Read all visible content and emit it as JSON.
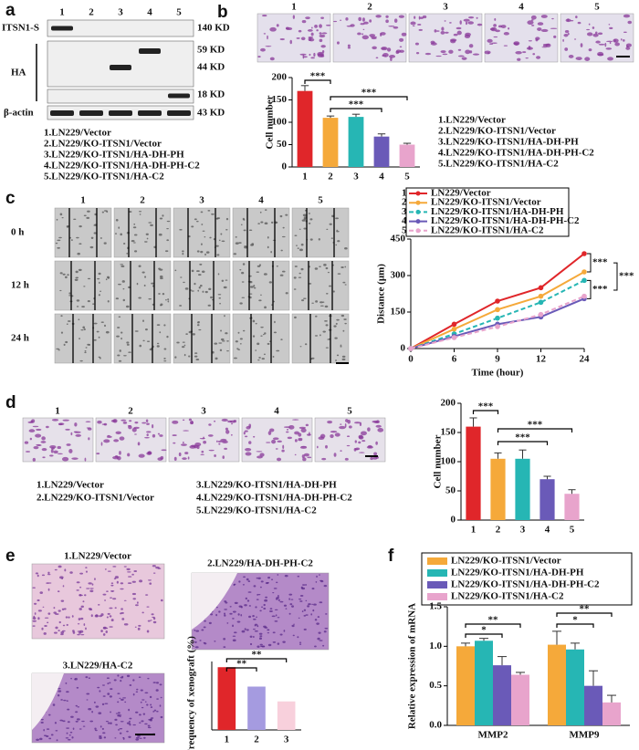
{
  "panels": {
    "a": {
      "label": "a",
      "lanes": [
        "1",
        "2",
        "3",
        "4",
        "5"
      ],
      "rows": [
        "ITSN1-S",
        "HA",
        "β-actin"
      ],
      "sizes": [
        "140 KD",
        "59 KD",
        "44 KD",
        "18 KD",
        "43 KD"
      ],
      "legend": [
        "1.LN229/Vector",
        "2.LN229/KO-ITSN1/Vector",
        "3.LN229/KO-ITSN1/HA-DH-PH",
        "4.LN229/KO-ITSN1/HA-DH-PH-C2",
        "5.LN229/KO-ITSN1/HA-C2"
      ]
    },
    "b": {
      "label": "b",
      "images": [
        "1",
        "2",
        "3",
        "4",
        "5"
      ],
      "legend": [
        "1.LN229/Vector",
        "2.LN229/KO-ITSN1/Vector",
        "3.LN229/KO-ITSN1/HA-DH-PH",
        "4.LN229/KO-ITSN1/HA-DH-PH-C2",
        "5.LN229/KO-ITSN1/HA-C2"
      ]
    },
    "c": {
      "label": "c",
      "columns": [
        "1",
        "2",
        "3",
        "4",
        "5"
      ],
      "rows": [
        "0 h",
        "12 h",
        "24 h"
      ]
    },
    "d": {
      "label": "d",
      "images": [
        "1",
        "2",
        "3",
        "4",
        "5"
      ],
      "legend": [
        "1.LN229/Vector",
        "2.LN229/KO-ITSN1/Vector",
        "3.LN229/KO-ITSN1/HA-DH-PH",
        "4.LN229/KO-ITSN1/HA-DH-PH-C2",
        "5.LN229/KO-ITSN1/HA-C2"
      ]
    },
    "e": {
      "label": "e",
      "images": [
        "1.LN229/Vector",
        "2.LN229/HA-DH-PH-C2",
        "3.LN229/HA-C2"
      ]
    },
    "f": {
      "label": "f"
    }
  },
  "chart_data": [
    {
      "type": "bar",
      "y_label": "Cell number",
      "categories": [
        "1",
        "2",
        "3",
        "4",
        "5"
      ],
      "values": [
        170,
        110,
        112,
        68,
        50
      ],
      "errors": [
        12,
        4,
        6,
        6,
        3
      ],
      "colors": [
        "#e0262a",
        "#f5a93a",
        "#26b6b4",
        "#6a5ab8",
        "#e8a4cc"
      ],
      "ylim": [
        0,
        200
      ],
      "yticks": [
        0,
        50,
        100,
        150,
        200
      ],
      "annotations": [
        "***",
        "***",
        "***"
      ]
    },
    {
      "type": "line",
      "x_label": "Time (hour)",
      "y_label": "Distance (μm)",
      "categories": [
        "0",
        "6",
        "9",
        "12",
        "24"
      ],
      "ylim": [
        0,
        450
      ],
      "yticks": [
        0,
        150,
        300,
        450
      ],
      "legend_numbers": [
        "1",
        "2",
        "3",
        "4",
        "5"
      ],
      "series": [
        {
          "name": "LN229/Vector",
          "color": "#e0262a",
          "style": "solid",
          "values": [
            0,
            100,
            195,
            250,
            390
          ]
        },
        {
          "name": "LN229/KO-ITSN1/Vector",
          "color": "#f5a93a",
          "style": "solid",
          "values": [
            0,
            80,
            160,
            215,
            315
          ]
        },
        {
          "name": "LN229/KO-ITSN1/HA-DH-PH",
          "color": "#26b6b4",
          "style": "dashed",
          "values": [
            0,
            60,
            125,
            190,
            280
          ]
        },
        {
          "name": "LN229/KO-ITSN1/HA-DH-PH-C2",
          "color": "#6a5ab8",
          "style": "solid",
          "values": [
            0,
            50,
            100,
            130,
            205
          ]
        },
        {
          "name": "LN229/KO-ITSN1/HA-C2",
          "color": "#e8a4cc",
          "style": "dashed",
          "values": [
            0,
            45,
            90,
            140,
            215
          ]
        }
      ],
      "annotations": [
        "***",
        "***",
        "***"
      ]
    },
    {
      "type": "bar",
      "y_label": "Cell number",
      "categories": [
        "1",
        "2",
        "3",
        "4",
        "5"
      ],
      "values": [
        160,
        105,
        105,
        70,
        45
      ],
      "errors": [
        15,
        10,
        15,
        5,
        7
      ],
      "colors": [
        "#e0262a",
        "#f5a93a",
        "#26b6b4",
        "#6a5ab8",
        "#e8a4cc"
      ],
      "ylim": [
        0,
        200
      ],
      "yticks": [
        0,
        50,
        100,
        150,
        200
      ],
      "annotations": [
        "***",
        "***",
        "***"
      ]
    },
    {
      "type": "bar",
      "y_label": "Frequency of xenograft (%)",
      "categories": [
        "1",
        "2",
        "3"
      ],
      "values": [
        55,
        38,
        25
      ],
      "colors": [
        "#e0262a",
        "#a59be0",
        "#f8d0dc"
      ],
      "ylim": [
        0,
        60
      ],
      "annotations": [
        "**",
        "**"
      ]
    },
    {
      "type": "bar",
      "y_label": "Relative expression of mRNA",
      "categories": [
        "MMP2",
        "MMP9"
      ],
      "ylim": [
        0,
        1.5
      ],
      "yticks": [
        {
          "value": 0,
          "label": "0.0"
        },
        0.5,
        {
          "value": 1,
          "label": "1.0"
        },
        1.5
      ],
      "series": [
        {
          "name": "LN229/KO-ITSN1/Vector",
          "color": "#f5a93a",
          "values": [
            1.0,
            1.02
          ],
          "errors": [
            0.04,
            0.17
          ]
        },
        {
          "name": "LN229/KO-ITSN1/HA-DH-PH",
          "color": "#26b6b4",
          "values": [
            1.07,
            0.96
          ],
          "errors": [
            0.03,
            0.08
          ]
        },
        {
          "name": "LN229/KO-ITSN1/HA-DH-PH-C2",
          "color": "#6a5ab8",
          "values": [
            0.76,
            0.5
          ],
          "errors": [
            0.11,
            0.19
          ]
        },
        {
          "name": "LN229/KO-ITSN1/HA-C2",
          "color": "#e8a4cc",
          "values": [
            0.64,
            0.29
          ],
          "errors": [
            0.03,
            0.09
          ]
        }
      ],
      "annotations": [
        "**",
        "*",
        "**",
        "*"
      ]
    }
  ]
}
